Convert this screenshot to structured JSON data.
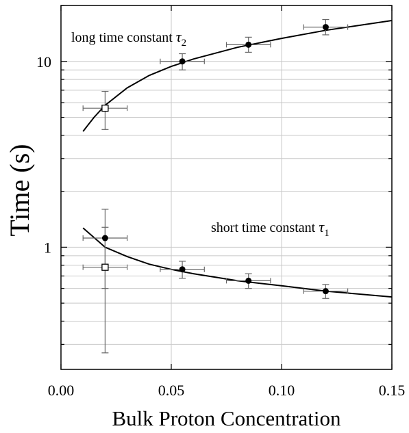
{
  "chart_data": {
    "type": "scatter",
    "xlabel": "Bulk Proton Concentration",
    "ylabel": "Time (s)",
    "xlim": [
      0.0,
      0.15
    ],
    "ylim": [
      0.22,
      20.0
    ],
    "yscale": "log",
    "grid": true,
    "x_ticks": [
      "0.00",
      "0.05",
      "0.10",
      "0.15"
    ],
    "y_ticks": [
      "1",
      "10"
    ],
    "annotations": [
      {
        "text": "long time constant ",
        "symbol": "τ",
        "sub": "2"
      },
      {
        "text": "short time constant ",
        "symbol": "τ",
        "sub": "1"
      }
    ],
    "series": [
      {
        "marker": "filled-circle",
        "points": [
          {
            "x": 0.055,
            "y": 10.0,
            "xerr": 0.01,
            "ylo": 9.0,
            "yhi": 11.0
          },
          {
            "x": 0.085,
            "y": 12.3,
            "xerr": 0.01,
            "ylo": 11.2,
            "yhi": 13.5
          },
          {
            "x": 0.12,
            "y": 15.3,
            "xerr": 0.01,
            "ylo": 13.9,
            "yhi": 16.8
          },
          {
            "x": 0.02,
            "y": 1.12,
            "xerr": 0.01,
            "ylo": 0.6,
            "yhi": 1.6
          },
          {
            "x": 0.055,
            "y": 0.76,
            "xerr": 0.01,
            "ylo": 0.68,
            "yhi": 0.84
          },
          {
            "x": 0.085,
            "y": 0.66,
            "xerr": 0.01,
            "ylo": 0.6,
            "yhi": 0.72
          },
          {
            "x": 0.12,
            "y": 0.58,
            "xerr": 0.01,
            "ylo": 0.53,
            "yhi": 0.63
          }
        ]
      },
      {
        "marker": "open-square",
        "points": [
          {
            "x": 0.02,
            "y": 5.6,
            "xerr": 0.01,
            "ylo": 4.3,
            "yhi": 6.9
          },
          {
            "x": 0.02,
            "y": 0.78,
            "xerr": 0.01,
            "ylo": 0.27,
            "yhi": 1.28
          }
        ]
      },
      {
        "marker": "line",
        "x": [
          0.01,
          0.015,
          0.02,
          0.03,
          0.04,
          0.05,
          0.06,
          0.08,
          0.1,
          0.12,
          0.15
        ],
        "y": [
          4.2,
          5.0,
          5.8,
          7.2,
          8.4,
          9.4,
          10.3,
          11.9,
          13.3,
          14.7,
          16.6
        ]
      },
      {
        "marker": "line",
        "x": [
          0.01,
          0.02,
          0.03,
          0.04,
          0.05,
          0.06,
          0.08,
          0.1,
          0.12,
          0.15
        ],
        "y": [
          1.27,
          1.0,
          0.89,
          0.81,
          0.76,
          0.72,
          0.66,
          0.62,
          0.58,
          0.54
        ]
      }
    ]
  }
}
